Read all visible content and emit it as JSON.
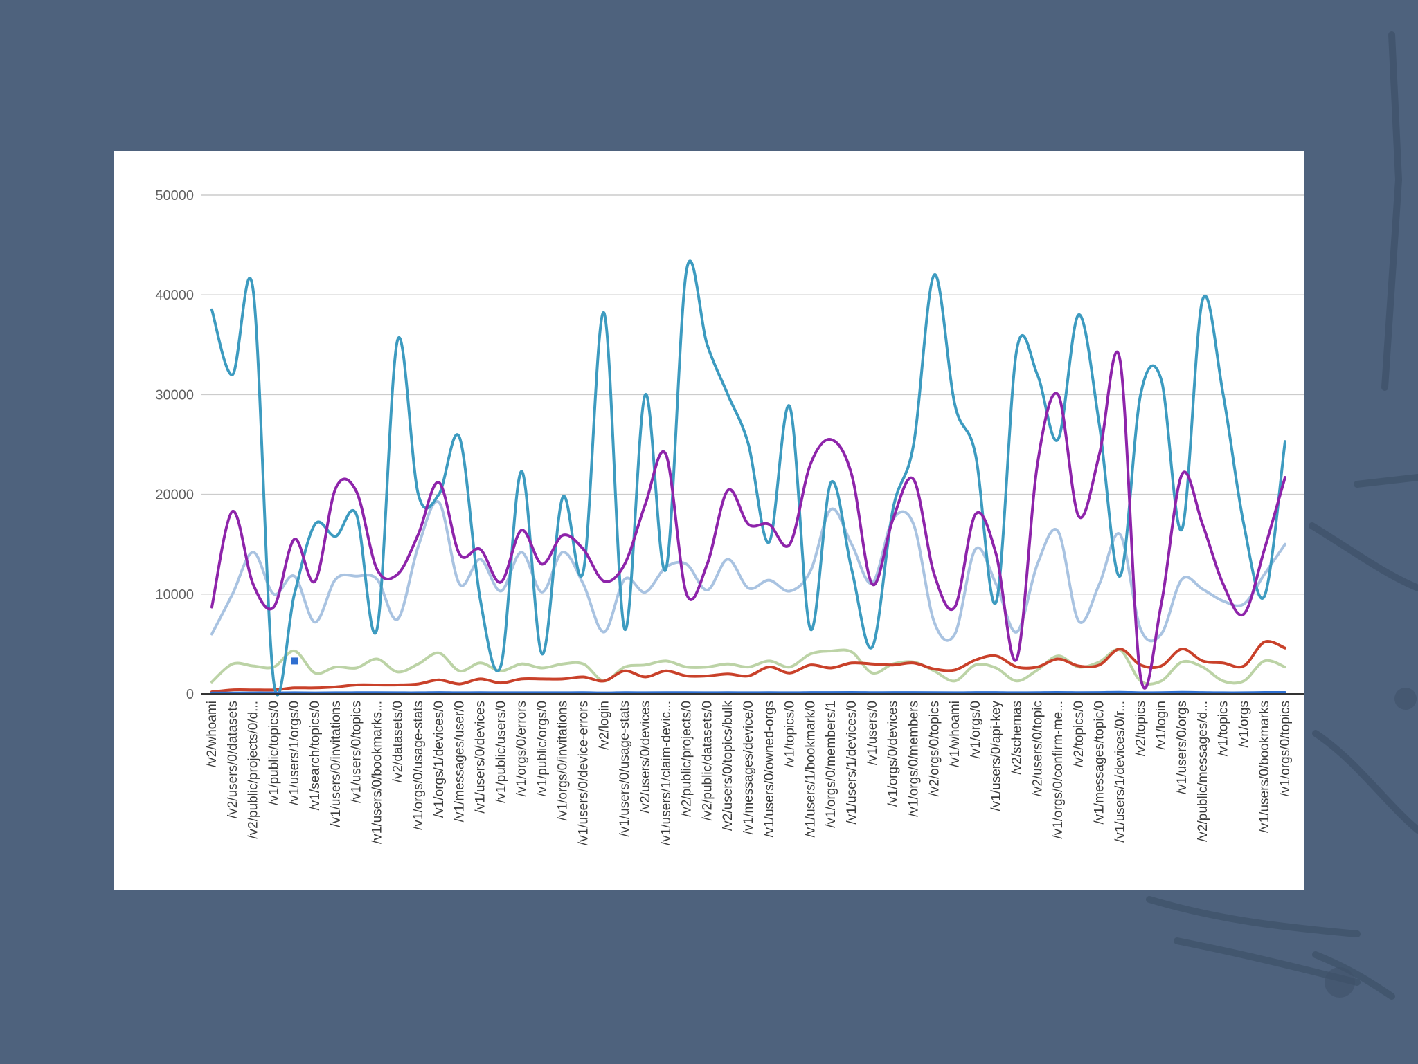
{
  "slide": {
    "background_color": "#4e627d",
    "card_color": "#ffffff"
  },
  "chart_data": {
    "type": "line",
    "title": "",
    "xlabel": "",
    "ylabel": "",
    "ylim": [
      0,
      50000
    ],
    "yticks": [
      0,
      10000,
      20000,
      30000,
      40000,
      50000
    ],
    "grid": true,
    "legend": "none",
    "categories": [
      "/v2/whoami",
      "/v2/users/0/datasets",
      "/v2/public/projects/0/d...",
      "/v1/public/topics/0",
      "/v1/users/1/orgs/0",
      "/v1/search/topics/0",
      "/v1/users/0/invitations",
      "/v1/users/0/topics",
      "/v1/users/0/bookmarks...",
      "/v2/datasets/0",
      "/v1/orgs/0/usage-stats",
      "/v1/orgs/1/devices/0",
      "/v1/messages/user/0",
      "/v1/users/0/devices",
      "/v1/public/users/0",
      "/v1/orgs/0/errors",
      "/v1/public/orgs/0",
      "/v1/orgs/0/invitations",
      "/v1/users/0/device-errors",
      "/v2/login",
      "/v1/users/0/usage-stats",
      "/v2/users/0/devices",
      "/v1/users/1/claim-devic...",
      "/v2/public/projects/0",
      "/v2/public/datasets/0",
      "/v2/users/0/topics/bulk",
      "/v1/messages/device/0",
      "/v1/users/0/owned-orgs",
      "/v1/topics/0",
      "/v1/users/1/bookmark/0",
      "/v1/orgs/0/members/1",
      "/v1/users/1/devices/0",
      "/v1/users/0",
      "/v1/orgs/0/devices",
      "/v1/orgs/0/members",
      "/v2/orgs/0/topics",
      "/v1/whoami",
      "/v1/orgs/0",
      "/v1/users/0/api-key",
      "/v2/schemas",
      "/v2/users/0/topic",
      "/v1/orgs/0/confirm-me...",
      "/v2/topics/0",
      "/v1/messages/topic/0",
      "/v1/users/1/devices/0/r...",
      "/v2/topics",
      "/v1/login",
      "/v1/users/0/orgs",
      "/v2/public/messages/d...",
      "/v1/topics",
      "/v1/orgs",
      "/v1/users/0/bookmarks",
      "/v1/orgs/0/topics"
    ],
    "series": [
      {
        "color": "#3d9bc0",
        "values": [
          38500,
          32000,
          40500,
          1200,
          10000,
          17000,
          15800,
          18000,
          6500,
          35500,
          20000,
          20000,
          25700,
          9500,
          2800,
          22300,
          4000,
          19700,
          12300,
          38200,
          6500,
          30000,
          12500,
          42500,
          35000,
          30000,
          25000,
          15200,
          28800,
          6500,
          21200,
          12500,
          4700,
          18500,
          25000,
          42000,
          29000,
          24000,
          9200,
          34500,
          32000,
          25500,
          38000,
          27000,
          11800,
          30000,
          31500,
          16500,
          39500,
          30000,
          17000,
          9800,
          25300
        ]
      },
      {
        "color": "#8e24aa",
        "values": [
          8700,
          18300,
          11000,
          8700,
          15500,
          11300,
          20600,
          20300,
          12500,
          12000,
          16000,
          21200,
          14000,
          14500,
          11200,
          16400,
          13000,
          15900,
          14500,
          11300,
          13000,
          19000,
          24000,
          10000,
          13000,
          20400,
          17000,
          17000,
          15000,
          23000,
          25500,
          22000,
          11000,
          17500,
          21500,
          12000,
          8700,
          18000,
          14000,
          3500,
          23000,
          30000,
          17800,
          24000,
          33500,
          1700,
          9000,
          22000,
          17000,
          11000,
          8000,
          14500,
          21700
        ]
      },
      {
        "color": "#a9c3e1",
        "values": [
          6000,
          10000,
          14200,
          10000,
          11800,
          7200,
          11500,
          11800,
          11500,
          7500,
          14800,
          19200,
          11000,
          13500,
          10300,
          14200,
          10200,
          14200,
          11000,
          6200,
          11500,
          10200,
          12700,
          13000,
          10400,
          13500,
          10600,
          11400,
          10300,
          12300,
          18500,
          15000,
          11100,
          17500,
          17000,
          7200,
          6000,
          14500,
          11000,
          6200,
          13000,
          16300,
          7300,
          11000,
          16000,
          6500,
          6000,
          11500,
          10500,
          9300,
          9000,
          12000,
          15000
        ]
      },
      {
        "color": "#bcd3a6",
        "values": [
          1200,
          3000,
          2800,
          2700,
          4300,
          2100,
          2700,
          2600,
          3500,
          2200,
          3000,
          4100,
          2300,
          3100,
          2300,
          3000,
          2600,
          3000,
          3000,
          1300,
          2700,
          2900,
          3300,
          2700,
          2700,
          3000,
          2700,
          3300,
          2700,
          4000,
          4300,
          4200,
          2100,
          3000,
          3200,
          2300,
          1300,
          2900,
          2600,
          1300,
          2400,
          3800,
          2700,
          3200,
          4400,
          1300,
          1300,
          3200,
          2700,
          1300,
          1300,
          3300,
          2700
        ]
      },
      {
        "color": "#c9412a",
        "values": [
          200,
          400,
          400,
          400,
          600,
          600,
          700,
          900,
          900,
          900,
          1000,
          1400,
          1000,
          1500,
          1100,
          1500,
          1500,
          1500,
          1700,
          1300,
          2300,
          1700,
          2300,
          1800,
          1800,
          2000,
          1800,
          2700,
          2100,
          2900,
          2600,
          3100,
          3000,
          2900,
          3100,
          2500,
          2400,
          3400,
          3800,
          2700,
          2700,
          3500,
          2800,
          2900,
          4500,
          2900,
          2800,
          4500,
          3300,
          3100,
          2800,
          5200,
          4600
        ]
      },
      {
        "color": "#2f6fd0",
        "values": [
          80,
          90,
          100,
          100,
          110,
          100,
          110,
          120,
          120,
          110,
          110,
          130,
          110,
          120,
          110,
          110,
          110,
          110,
          120,
          100,
          120,
          110,
          120,
          120,
          110,
          120,
          110,
          120,
          110,
          130,
          130,
          140,
          120,
          130,
          130,
          120,
          110,
          130,
          130,
          110,
          120,
          140,
          120,
          130,
          160,
          110,
          120,
          150,
          130,
          110,
          110,
          140,
          140
        ]
      }
    ],
    "annotations": [
      {
        "type": "selected-point",
        "color": "#2f6fd0",
        "category": "/v1/users/1/orgs/0",
        "value": 3300
      }
    ]
  }
}
